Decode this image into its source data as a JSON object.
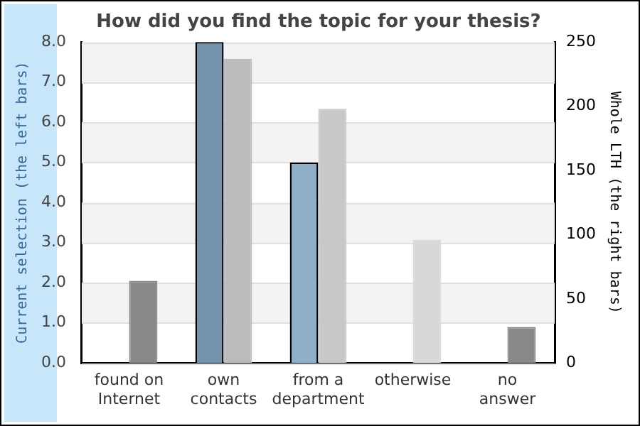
{
  "chart_data": {
    "type": "bar",
    "title": "How did you find the topic for your thesis?",
    "ylabel": "Current selection (the left bars)",
    "y2label": "Whole LTH (the right bars)",
    "categories": [
      "found on\nInternet",
      "own\ncontacts",
      "from a\ndepartment",
      "otherwise",
      "no\nanswer"
    ],
    "series": [
      {
        "colors": [
          "#7393ad",
          "#7393ad",
          "#8fafc9",
          "#8fafc9",
          "#8fafc9"
        ],
        "values": [
          0,
          8,
          5,
          0,
          0
        ]
      },
      {
        "axis": "y2",
        "colors": [
          "#888888",
          "#bbbbbb",
          "#c8c8c8",
          "#d8d8d8",
          "#888888"
        ],
        "values": [
          64,
          237,
          198,
          96,
          28
        ]
      }
    ],
    "ylim": [
      0,
      8
    ],
    "yticks": [
      {
        "value": 0,
        "label": "0.0"
      },
      {
        "value": 1,
        "label": "1.0"
      },
      {
        "value": 2,
        "label": "2.0"
      },
      {
        "value": 3,
        "label": "3.0"
      },
      {
        "value": 4,
        "label": "4.0"
      },
      {
        "value": 5,
        "label": "5.0"
      },
      {
        "value": 6,
        "label": "6.0"
      },
      {
        "value": 7,
        "label": "7.0"
      },
      {
        "value": 8,
        "label": "8.0"
      }
    ],
    "y2lim": [
      0,
      250
    ],
    "y2ticks": [
      0,
      50,
      100,
      150,
      200,
      250
    ],
    "grid": "y",
    "legend": false
  }
}
